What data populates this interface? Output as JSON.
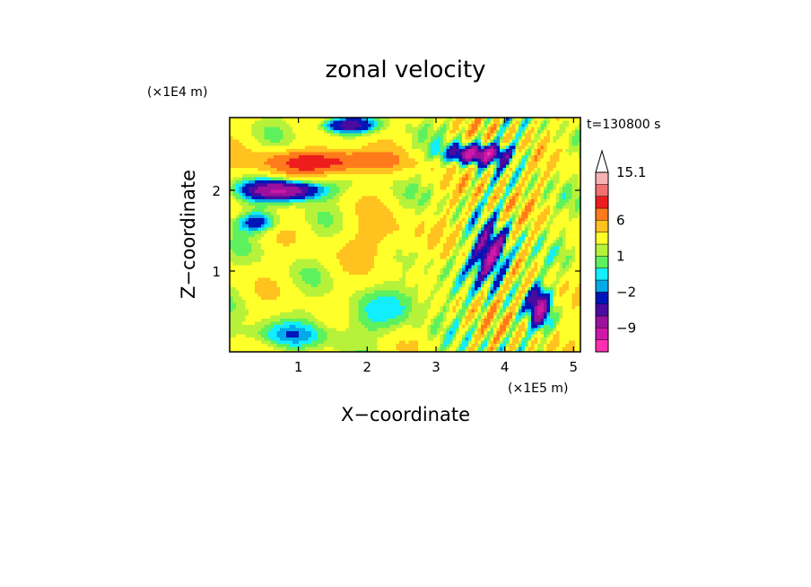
{
  "chart_data": {
    "type": "heatmap",
    "title": "zonal velocity",
    "xlabel": "X−coordinate",
    "ylabel": "Z−coordinate",
    "x_unit": "(×1E5 m)",
    "y_unit": "(×1E4 m)",
    "time_label": "t=130800 s",
    "xlim": [
      0,
      5.1
    ],
    "ylim": [
      0,
      2.9
    ],
    "x_ticks": [
      1,
      2,
      3,
      4,
      5
    ],
    "y_ticks": [
      1,
      2
    ],
    "colorbar": {
      "levels": [
        -15,
        -12,
        -9,
        -6,
        -4,
        -2,
        -1,
        0,
        1,
        2,
        4,
        6,
        9,
        12,
        15.1
      ],
      "colors": [
        "#ff2fb0",
        "#cf17a9",
        "#9c119c",
        "#4b0aa0",
        "#0015b8",
        "#00a9e8",
        "#11eeff",
        "#5ef15e",
        "#b7f23a",
        "#ffff2a",
        "#ffc21f",
        "#ff7a1a",
        "#ee1d1d",
        "#f17070",
        "#f6b4b4"
      ],
      "labeled_levels": [
        15.1,
        6,
        1,
        -2,
        -9
      ],
      "extend": "max"
    }
  }
}
